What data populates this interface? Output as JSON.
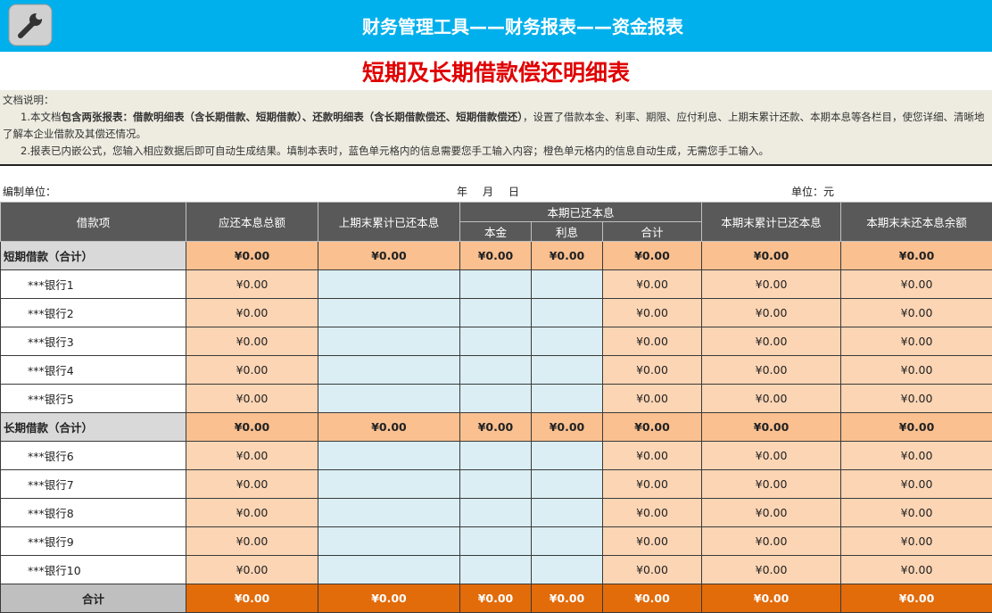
{
  "header": {
    "title": "财务管理工具——财务报表——资金报表"
  },
  "report": {
    "title": "短期及长期借款偿还明细表"
  },
  "description": {
    "heading": "文档说明：",
    "paragraphs": [
      [
        {
          "text": "1.本文档"
        },
        {
          "text": "包含两张报表：借款明细表（含长期借款、短期借款）、还款明细表（含长期借款偿还、短期借款偿还）",
          "bold": true
        },
        {
          "text": "，设置了借款本金、利率、期限、应付利息、上期末累计还款、本期本息等各栏目，使您详细、清晰地了解本企业借款及其偿还情况。"
        }
      ],
      [
        {
          "text": "2.报表已内嵌公式，您输入相应数据后即可自动生成结果。填制本表时，蓝色单元格内的信息需要您手工输入内容；橙色单元格内的信息自动生成，无需您手工输入。"
        }
      ]
    ]
  },
  "meta": {
    "unit_name": "编制单位：",
    "year": "年",
    "month": "月",
    "day": "日",
    "unit": "单位：元"
  },
  "table": {
    "headers": {
      "item": "借款项",
      "total_due": "应还本息总额",
      "prior_paid": "上期末累计已还本息",
      "current": "本期已还本息",
      "current_sub": [
        "本金",
        "利息",
        "合计"
      ],
      "cum_paid": "本期末累计已还本息",
      "remaining": "本期末未还本息余额"
    },
    "rows": [
      {
        "kind": "summary",
        "label": "短期借款（合计）",
        "cells": [
          "¥0.00",
          "¥0.00",
          "¥0.00",
          "¥0.00",
          "¥0.00",
          "¥0.00",
          "¥0.00"
        ]
      },
      {
        "kind": "item",
        "label": "***银行1",
        "cells": [
          "¥0.00",
          null,
          null,
          null,
          "¥0.00",
          "¥0.00",
          "¥0.00"
        ]
      },
      {
        "kind": "item",
        "label": "***银行2",
        "cells": [
          "¥0.00",
          null,
          null,
          null,
          "¥0.00",
          "¥0.00",
          "¥0.00"
        ]
      },
      {
        "kind": "item",
        "label": "***银行3",
        "cells": [
          "¥0.00",
          null,
          null,
          null,
          "¥0.00",
          "¥0.00",
          "¥0.00"
        ]
      },
      {
        "kind": "item",
        "label": "***银行4",
        "cells": [
          "¥0.00",
          null,
          null,
          null,
          "¥0.00",
          "¥0.00",
          "¥0.00"
        ]
      },
      {
        "kind": "item",
        "label": "***银行5",
        "cells": [
          "¥0.00",
          null,
          null,
          null,
          "¥0.00",
          "¥0.00",
          "¥0.00"
        ]
      },
      {
        "kind": "summary",
        "label": "长期借款（合计）",
        "cells": [
          "¥0.00",
          "¥0.00",
          "¥0.00",
          "¥0.00",
          "¥0.00",
          "¥0.00",
          "¥0.00"
        ]
      },
      {
        "kind": "item",
        "label": "***银行6",
        "cells": [
          "¥0.00",
          null,
          null,
          null,
          "¥0.00",
          "¥0.00",
          "¥0.00"
        ]
      },
      {
        "kind": "item",
        "label": "***银行7",
        "cells": [
          "¥0.00",
          null,
          null,
          null,
          "¥0.00",
          "¥0.00",
          "¥0.00"
        ]
      },
      {
        "kind": "item",
        "label": "***银行8",
        "cells": [
          "¥0.00",
          null,
          null,
          null,
          "¥0.00",
          "¥0.00",
          "¥0.00"
        ]
      },
      {
        "kind": "item",
        "label": "***银行9",
        "cells": [
          "¥0.00",
          null,
          null,
          null,
          "¥0.00",
          "¥0.00",
          "¥0.00"
        ]
      },
      {
        "kind": "item",
        "label": "***银行10",
        "cells": [
          "¥0.00",
          null,
          null,
          null,
          "¥0.00",
          "¥0.00",
          "¥0.00"
        ]
      },
      {
        "kind": "total",
        "label": "合计",
        "cells": [
          "¥0.00",
          "¥0.00",
          "¥0.00",
          "¥0.00",
          "¥0.00",
          "¥0.00",
          "¥0.00"
        ]
      }
    ]
  }
}
